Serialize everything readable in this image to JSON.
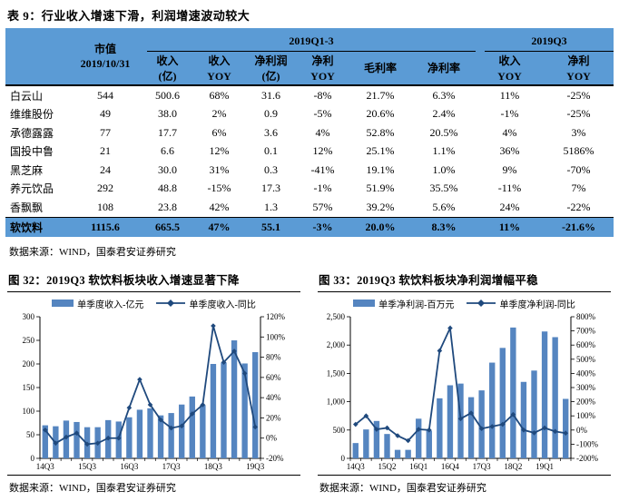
{
  "colors": {
    "header_blue": "#5B9BD5",
    "bar": "#5585C0",
    "line": "#1F497D",
    "text": "#000000"
  },
  "table": {
    "title": "表 9：行业收入增速下滑，利润增速波动较大",
    "header": {
      "marketcap": [
        "市值",
        "2019/10/31"
      ],
      "groups": [
        {
          "label": "2019Q1-3"
        },
        {
          "label": "2019Q3"
        }
      ],
      "subcols": [
        [
          "收入",
          "(亿)"
        ],
        [
          "收入",
          "YOY"
        ],
        [
          "净利润",
          "(亿)"
        ],
        [
          "净利",
          "YOY"
        ],
        [
          "毛利率"
        ],
        [
          "净利率"
        ],
        [
          "收入",
          "YOY"
        ],
        [
          "净利",
          "YOY"
        ]
      ]
    },
    "rows": [
      {
        "name": "白云山",
        "cells": [
          "544",
          "500.6",
          "68%",
          "31.6",
          "-8%",
          "21.7%",
          "6.3%",
          "11%",
          "-25%"
        ]
      },
      {
        "name": "维维股份",
        "cells": [
          "49",
          "38.0",
          "2%",
          "0.9",
          "-5%",
          "20.6%",
          "2.4%",
          "-1%",
          "-25%"
        ]
      },
      {
        "name": "承德露露",
        "cells": [
          "77",
          "17.7",
          "6%",
          "3.6",
          "4%",
          "52.8%",
          "20.5%",
          "4%",
          "3%"
        ]
      },
      {
        "name": "国投中鲁",
        "cells": [
          "21",
          "6.6",
          "12%",
          "0.1",
          "12%",
          "25.1%",
          "1.1%",
          "36%",
          "5186%"
        ]
      },
      {
        "name": "黑芝麻",
        "cells": [
          "24",
          "30.0",
          "31%",
          "0.3",
          "-41%",
          "19.1%",
          "1.0%",
          "9%",
          "-70%"
        ]
      },
      {
        "name": "养元饮品",
        "cells": [
          "292",
          "48.8",
          "-15%",
          "17.3",
          "-1%",
          "51.9%",
          "35.5%",
          "-11%",
          "7%"
        ]
      },
      {
        "name": "香飘飘",
        "cells": [
          "108",
          "23.8",
          "42%",
          "1.3",
          "57%",
          "39.2%",
          "5.6%",
          "24%",
          "-22%"
        ]
      }
    ],
    "total": {
      "name": "软饮料",
      "cells": [
        "1115.6",
        "665.5",
        "47%",
        "55.1",
        "-3%",
        "20.0%",
        "8.3%",
        "11%",
        "-21.6%"
      ]
    },
    "source": "数据来源：WIND，国泰君安证券研究"
  },
  "chart_data": [
    {
      "type": "bar+line",
      "title": "图 32：2019Q3 软饮料板块收入增速显著下降",
      "legend": [
        "单季度收入-亿元",
        "单季度收入-同比"
      ],
      "source": "数据来源：WIND，国泰君安证券研究",
      "x": [
        "14Q3",
        "14Q4",
        "15Q1",
        "15Q2",
        "15Q3",
        "15Q4",
        "16Q1",
        "16Q2",
        "16Q3",
        "16Q4",
        "17Q1",
        "17Q2",
        "17Q3",
        "17Q4",
        "18Q1",
        "18Q2",
        "18Q3",
        "18Q4",
        "19Q1",
        "19Q2",
        "19Q3"
      ],
      "x_labeled_indices": [
        0,
        4,
        8,
        12,
        16,
        20
      ],
      "bars": [
        70,
        68,
        80,
        77,
        66,
        66,
        81,
        78,
        87,
        103,
        106,
        91,
        96,
        114,
        131,
        113,
        200,
        203,
        250,
        201,
        225
      ],
      "line": [
        8,
        -5,
        1,
        5,
        -6,
        -5,
        0,
        0,
        30,
        58,
        33,
        18,
        10,
        12,
        24,
        33,
        111,
        75,
        86,
        64,
        11
      ],
      "left_axis": {
        "min": 0,
        "max": 300,
        "step": 50
      },
      "right_axis": {
        "min": -20,
        "max": 120,
        "step": 20,
        "suffix": "%"
      },
      "grid": false,
      "legend_position": "top"
    },
    {
      "type": "bar+line",
      "title": "图 33：2019Q3 软饮料板块净利润增幅平稳",
      "legend": [
        "单季净利润-百万元",
        "单季度净利润-同比"
      ],
      "source": "数据来源：WIND，国泰君安证券研究",
      "x": [
        "14Q3",
        "14Q4",
        "15Q1",
        "15Q2",
        "15Q3",
        "15Q4",
        "16Q1",
        "16Q2",
        "16Q3",
        "16Q4",
        "17Q1",
        "17Q2",
        "17Q3",
        "17Q4",
        "18Q1",
        "18Q2",
        "18Q3",
        "18Q4",
        "19Q1",
        "19Q2",
        "19Q3"
      ],
      "x_labeled_indices": [
        0,
        3,
        6,
        9,
        12,
        15,
        18
      ],
      "bars": [
        270,
        510,
        660,
        430,
        150,
        150,
        700,
        490,
        1060,
        1290,
        1320,
        1080,
        1200,
        1690,
        1950,
        2310,
        1350,
        1550,
        2240,
        2140,
        1050
      ],
      "line": [
        40,
        100,
        5,
        15,
        -40,
        -75,
        5,
        0,
        560,
        720,
        80,
        120,
        10,
        25,
        40,
        110,
        0,
        -20,
        15,
        -10,
        -22
      ],
      "left_axis": {
        "min": 0,
        "max": 2500,
        "step": 500
      },
      "right_axis": {
        "min": -200,
        "max": 800,
        "step": 100,
        "suffix": "%"
      },
      "grid": false,
      "legend_position": "top"
    }
  ]
}
